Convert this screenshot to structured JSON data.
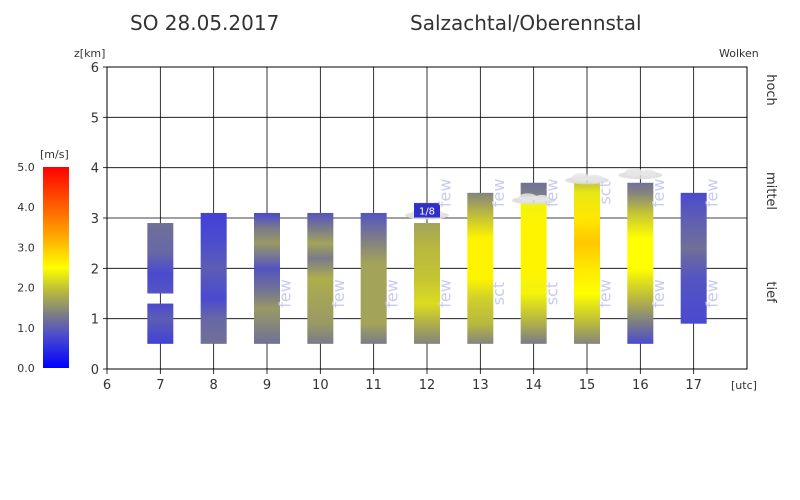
{
  "chart_data": {
    "type": "heatmap",
    "title_left": "SO 28.05.2017",
    "title_right": "Salzachtal/Oberennstal",
    "ylabel": "z[km]",
    "xunit": "[utc]",
    "x_ticks": [
      "6",
      "7",
      "8",
      "9",
      "10",
      "11",
      "12",
      "13",
      "14",
      "15",
      "16",
      "17"
    ],
    "y_ticks": [
      "0",
      "1",
      "2",
      "3",
      "4",
      "5",
      "6"
    ],
    "xlim": [
      6,
      18
    ],
    "ylim": [
      0,
      6
    ],
    "right_title": "Wolken",
    "right_labels": [
      "hoch",
      "mittel",
      "tief"
    ],
    "colorbar": {
      "title": "[m/s]",
      "ticks": [
        "0.0",
        "1.0",
        "2.0",
        "3.0",
        "4.0",
        "5.0"
      ],
      "range": [
        0,
        5
      ],
      "colors": [
        "#0000ff",
        "#4a4ad0",
        "#7a7a8a",
        "#b8b840",
        "#ffff00",
        "#ffa500",
        "#ff0000"
      ]
    },
    "columns": [
      {
        "hour": 7,
        "segments": [
          {
            "bottom": 0.5,
            "top": 1.3,
            "stops": [
              [
                0.5,
                0.7
              ],
              [
                1.0,
                1.0
              ],
              [
                1.3,
                0.8
              ]
            ]
          },
          {
            "bottom": 1.5,
            "top": 2.9,
            "stops": [
              [
                1.5,
                0.9
              ],
              [
                1.9,
                0.8
              ],
              [
                2.3,
                1.1
              ],
              [
                2.9,
                1.2
              ]
            ]
          }
        ]
      },
      {
        "hour": 8,
        "segments": [
          {
            "bottom": 0.5,
            "top": 3.1,
            "stops": [
              [
                0.5,
                1.2
              ],
              [
                1.0,
                1.1
              ],
              [
                1.4,
                0.8
              ],
              [
                2.0,
                1.0
              ],
              [
                2.6,
                0.8
              ],
              [
                3.1,
                0.7
              ]
            ]
          }
        ]
      },
      {
        "hour": 9,
        "segments": [
          {
            "bottom": 0.5,
            "top": 3.1,
            "stops": [
              [
                0.5,
                1.2
              ],
              [
                1.2,
                1.6
              ],
              [
                1.6,
                1.2
              ],
              [
                2.0,
                0.9
              ],
              [
                2.5,
                1.6
              ],
              [
                2.8,
                1.3
              ],
              [
                3.1,
                0.8
              ]
            ]
          }
        ]
      },
      {
        "hour": 10,
        "segments": [
          {
            "bottom": 0.5,
            "top": 3.1,
            "stops": [
              [
                0.5,
                1.3
              ],
              [
                0.9,
                1.6
              ],
              [
                1.8,
                1.8
              ],
              [
                2.2,
                1.3
              ],
              [
                2.5,
                1.7
              ],
              [
                2.8,
                1.3
              ],
              [
                3.1,
                0.9
              ]
            ]
          }
        ]
      },
      {
        "hour": 11,
        "segments": [
          {
            "bottom": 0.5,
            "top": 3.1,
            "stops": [
              [
                0.5,
                1.3
              ],
              [
                0.9,
                1.7
              ],
              [
                2.1,
                1.7
              ],
              [
                2.5,
                1.4
              ],
              [
                3.1,
                0.9
              ]
            ]
          }
        ]
      },
      {
        "hour": 12,
        "segments": [
          {
            "bottom": 0.5,
            "top": 2.9,
            "stops": [
              [
                0.5,
                1.4
              ],
              [
                0.9,
                1.8
              ],
              [
                1.3,
                2.2
              ],
              [
                1.8,
                2.0
              ],
              [
                2.4,
                1.9
              ],
              [
                2.9,
                1.7
              ]
            ]
          },
          {
            "bottom": 3.0,
            "top": 3.3,
            "stops": [
              [
                3.0,
                0.9
              ],
              [
                3.3,
                0.9
              ]
            ]
          }
        ]
      },
      {
        "hour": 13,
        "segments": [
          {
            "bottom": 0.5,
            "top": 3.5,
            "stops": [
              [
                0.5,
                1.4
              ],
              [
                0.9,
                1.9
              ],
              [
                1.4,
                2.1
              ],
              [
                1.8,
                2.6
              ],
              [
                2.6,
                2.6
              ],
              [
                3.1,
                1.9
              ],
              [
                3.5,
                1.4
              ]
            ]
          }
        ]
      },
      {
        "hour": 14,
        "segments": [
          {
            "bottom": 0.5,
            "top": 3.3,
            "stops": [
              [
                0.5,
                1.3
              ],
              [
                0.9,
                1.8
              ],
              [
                1.5,
                2.4
              ],
              [
                2.0,
                2.6
              ],
              [
                2.8,
                2.6
              ],
              [
                3.3,
                2.4
              ]
            ]
          },
          {
            "bottom": 3.35,
            "top": 3.7,
            "stops": [
              [
                3.35,
                1.4
              ],
              [
                3.7,
                1.2
              ]
            ]
          }
        ]
      },
      {
        "hour": 15,
        "segments": [
          {
            "bottom": 0.5,
            "top": 3.7,
            "stops": [
              [
                0.5,
                1.4
              ],
              [
                0.9,
                1.9
              ],
              [
                1.5,
                2.5
              ],
              [
                2.0,
                2.7
              ],
              [
                2.5,
                3.0
              ],
              [
                3.0,
                2.7
              ],
              [
                3.5,
                2.3
              ],
              [
                3.7,
                2.0
              ]
            ]
          }
        ]
      },
      {
        "hour": 16,
        "segments": [
          {
            "bottom": 0.5,
            "top": 3.7,
            "stops": [
              [
                0.5,
                0.8
              ],
              [
                0.9,
                1.3
              ],
              [
                1.4,
                1.9
              ],
              [
                2.0,
                2.5
              ],
              [
                2.6,
                2.5
              ],
              [
                3.1,
                2.0
              ],
              [
                3.5,
                1.4
              ],
              [
                3.7,
                1.2
              ]
            ]
          }
        ]
      },
      {
        "hour": 17,
        "segments": [
          {
            "bottom": 0.9,
            "top": 3.5,
            "stops": [
              [
                0.9,
                0.8
              ],
              [
                1.8,
                0.9
              ],
              [
                2.4,
                1.2
              ],
              [
                3.0,
                1.0
              ],
              [
                3.5,
                0.8
              ]
            ]
          }
        ]
      }
    ],
    "cloud_labels": [
      {
        "text": "few",
        "x": 9.5,
        "y": 1.5
      },
      {
        "text": "few",
        "x": 10.5,
        "y": 1.5
      },
      {
        "text": "few",
        "x": 11.5,
        "y": 1.5
      },
      {
        "text": "few",
        "x": 12.5,
        "y": 1.5
      },
      {
        "text": "sct",
        "x": 13.5,
        "y": 1.5
      },
      {
        "text": "sct",
        "x": 14.5,
        "y": 1.5
      },
      {
        "text": "few",
        "x": 15.5,
        "y": 1.5
      },
      {
        "text": "few",
        "x": 16.5,
        "y": 1.5
      },
      {
        "text": "few",
        "x": 17.5,
        "y": 1.5
      },
      {
        "text": "few",
        "x": 12.5,
        "y": 3.5
      },
      {
        "text": "few",
        "x": 13.5,
        "y": 3.5
      },
      {
        "text": "few",
        "x": 14.5,
        "y": 3.5
      },
      {
        "text": "sct",
        "x": 15.5,
        "y": 3.5
      },
      {
        "text": "few",
        "x": 16.5,
        "y": 3.5
      },
      {
        "text": "few",
        "x": 17.5,
        "y": 3.5
      }
    ],
    "marker": {
      "text": "1/8",
      "x": 12.0,
      "y": 3.15
    },
    "cloud_blobs": [
      {
        "x": 12.0,
        "y": 3.05
      },
      {
        "x": 14.0,
        "y": 3.35
      },
      {
        "x": 15.0,
        "y": 3.75
      },
      {
        "x": 16.0,
        "y": 3.85
      }
    ]
  }
}
